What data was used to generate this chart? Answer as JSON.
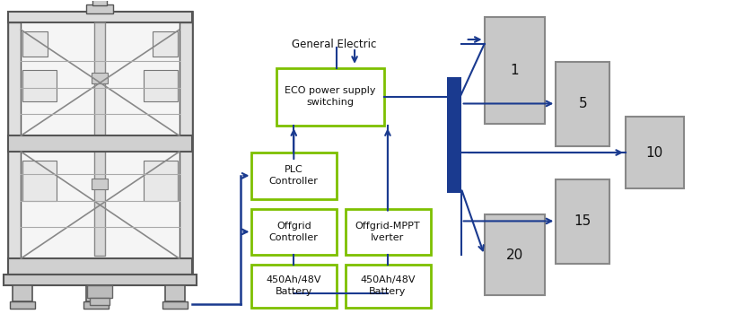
{
  "bg_color": "#ffffff",
  "arrow_color": "#1a3a8f",
  "green_border": "#7dc000",
  "gray_fill": "#c8c8c8",
  "gray_border": "#888888",
  "dark_blue": "#1a3a8f",
  "ge_label": "General Electric",
  "eco_label": "ECO power supply\nswitching",
  "plc_label": "PLC\nController",
  "offgrid_ctrl_label": "Offgrid\nController",
  "offgrid_mppt_label": "Offgrid-MPPT\nIverter",
  "bat1_label": "450Ah/48V\nBattery",
  "bat2_label": "450Ah/48V\nBattery",
  "loads": [
    "1",
    "5",
    "10",
    "15",
    "20"
  ],
  "rack_color": "#f0f0f0",
  "rack_line_color": "#666666"
}
